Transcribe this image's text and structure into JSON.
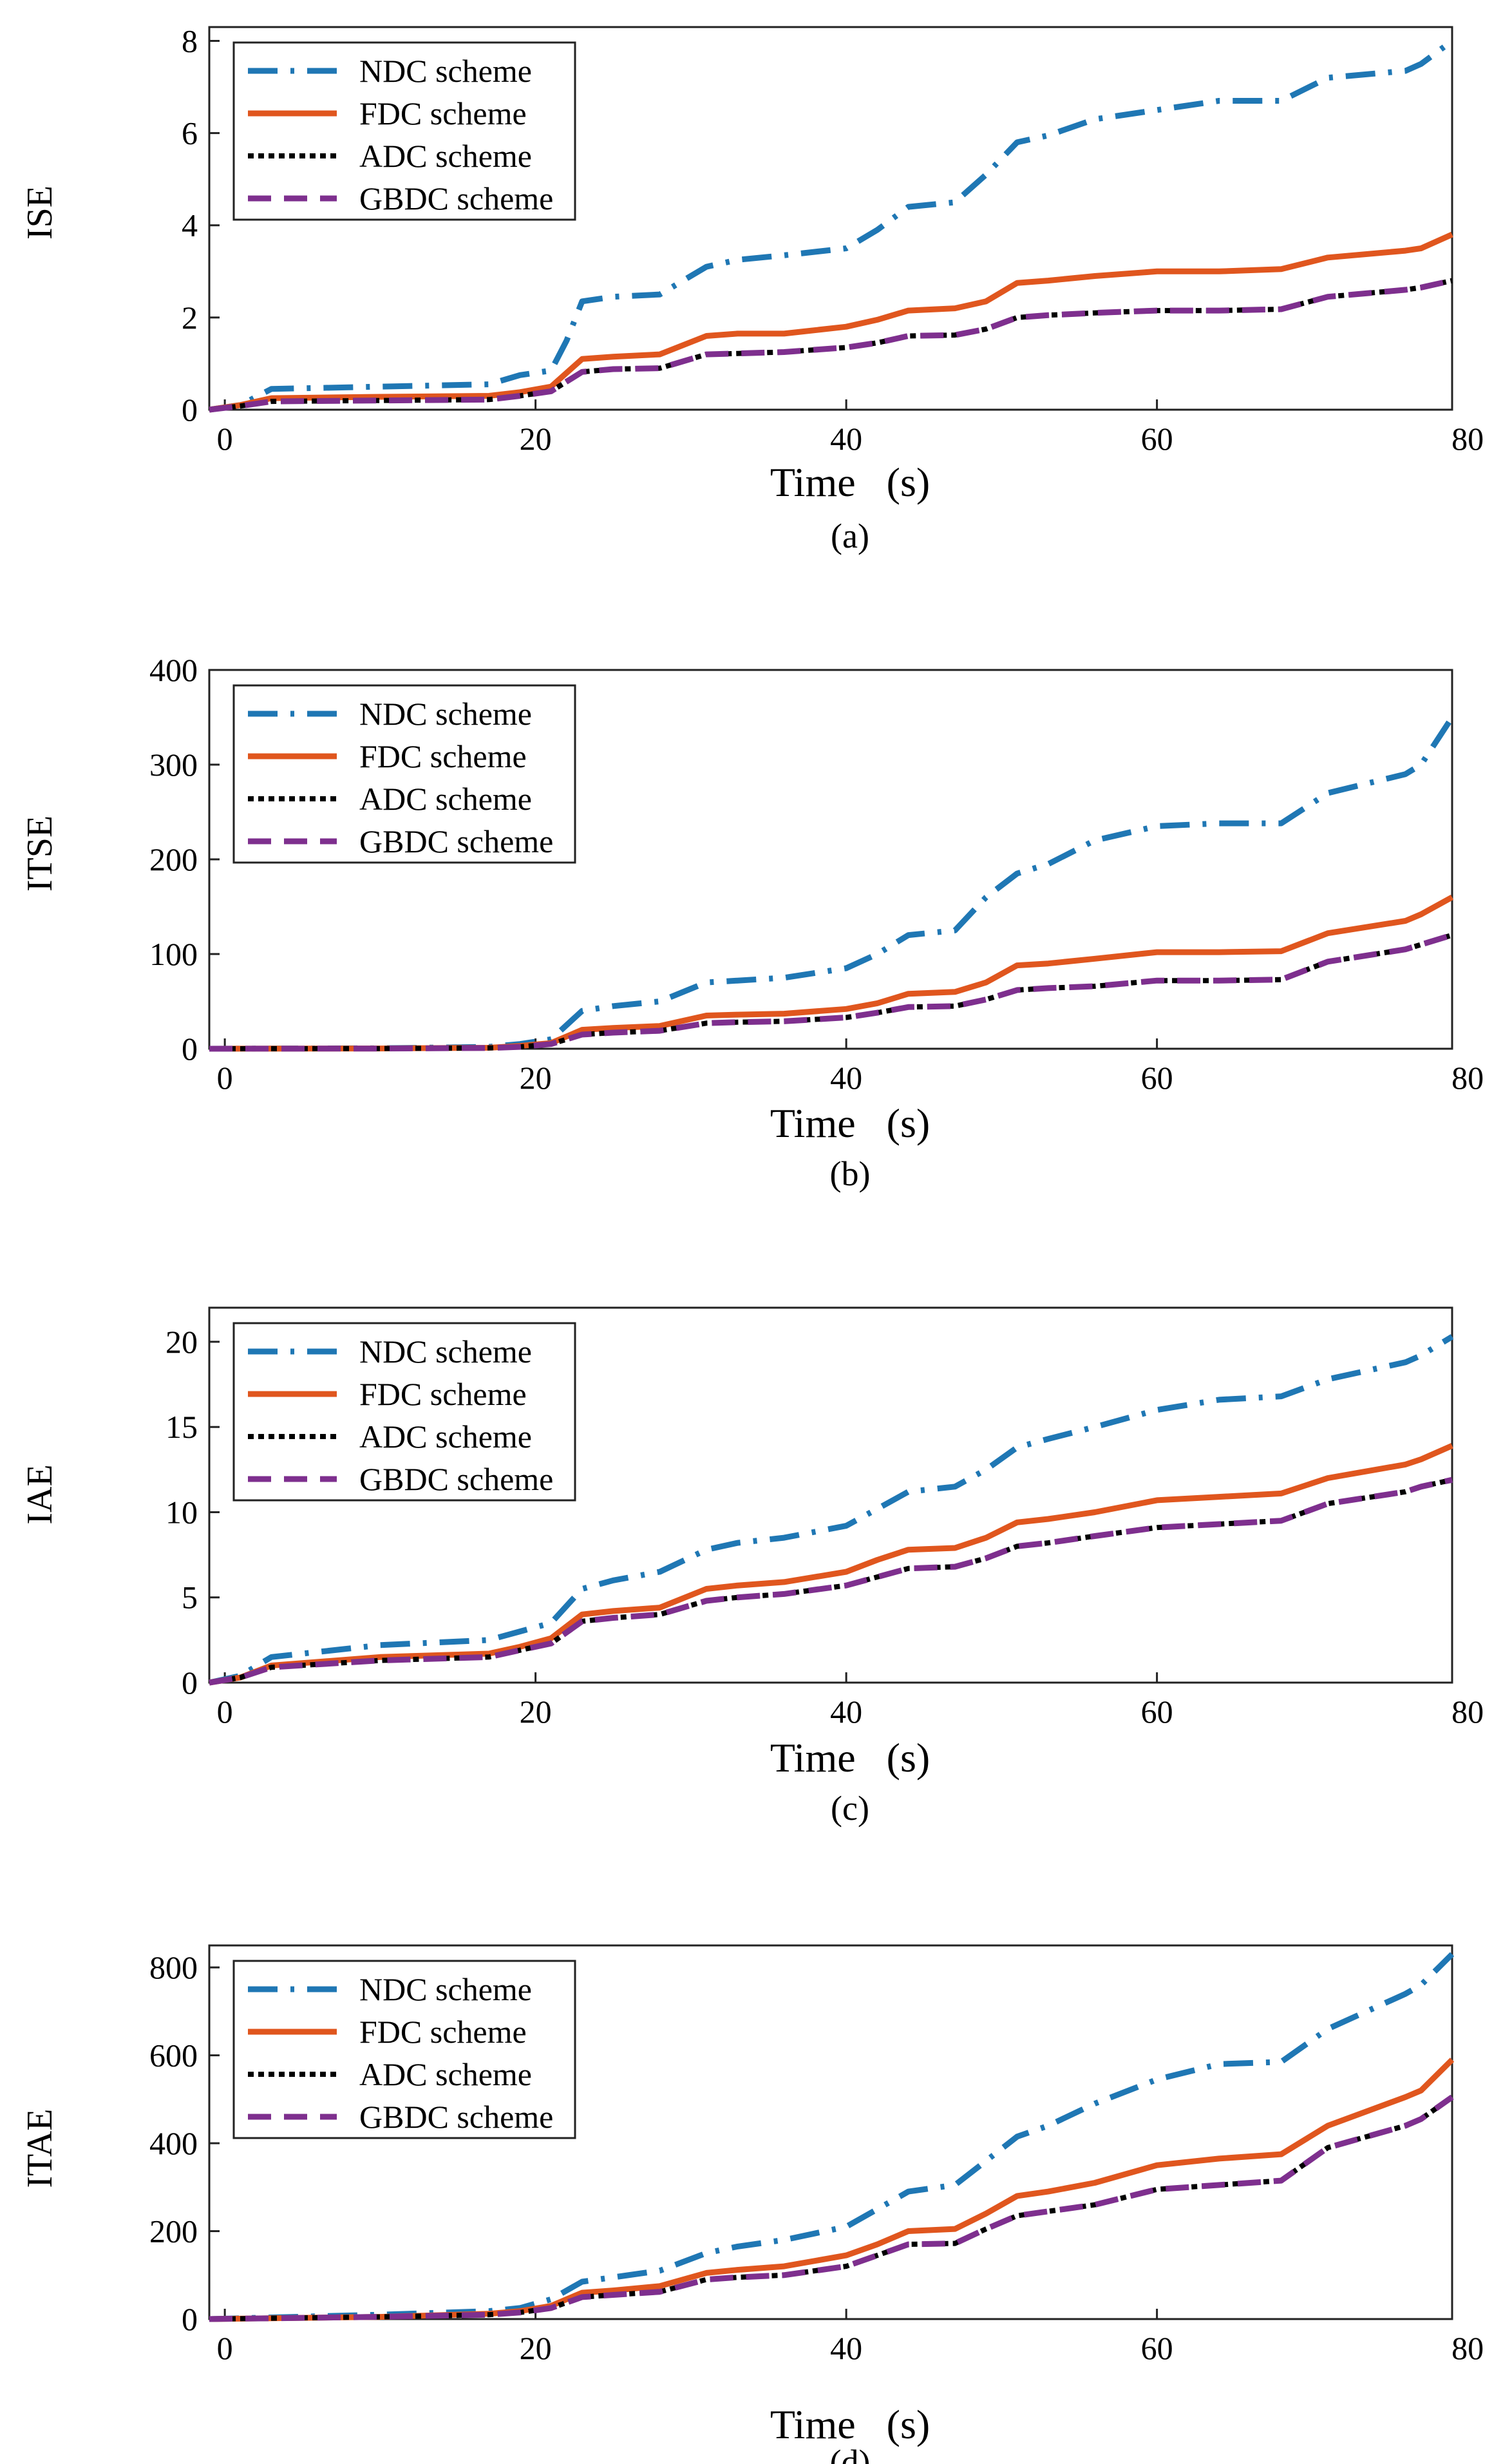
{
  "colors": {
    "NDC": "#1f77b4",
    "FDC": "#e0561e",
    "ADC": "#000000",
    "GBDC": "#7e2f8e"
  },
  "chart_data": [
    {
      "type": "line",
      "ylabel": "ISE",
      "xlabel": "Time   (s)",
      "caption": "(a)",
      "xlim": [
        -1,
        79
      ],
      "ylim": [
        0,
        8.3
      ],
      "xticks": [
        0,
        20,
        40,
        60,
        80
      ],
      "yticks": [
        0,
        2,
        4,
        6,
        8
      ],
      "xtick_labels": [
        "0",
        "20",
        "40",
        "60",
        "80"
      ],
      "ytick_labels": [
        "0",
        "2",
        "4",
        "6",
        "8"
      ],
      "legend_position": "top-left",
      "series": [
        {
          "name": "NDC scheme",
          "key": "NDC",
          "x": [
            -1,
            1,
            3,
            10,
            17,
            19,
            21,
            22,
            23,
            25,
            28,
            31,
            33,
            36,
            40,
            42,
            44,
            47,
            49,
            51,
            53,
            56,
            60,
            64,
            68,
            71,
            76,
            77,
            79
          ],
          "y": [
            0,
            0.1,
            0.45,
            0.5,
            0.55,
            0.75,
            0.85,
            1.5,
            2.35,
            2.45,
            2.5,
            3.1,
            3.25,
            3.35,
            3.5,
            3.9,
            4.4,
            4.5,
            5.1,
            5.8,
            5.95,
            6.3,
            6.5,
            6.7,
            6.7,
            7.2,
            7.35,
            7.5,
            8.0
          ]
        },
        {
          "name": "FDC scheme",
          "key": "FDC",
          "x": [
            -1,
            1,
            3,
            10,
            17,
            19,
            21,
            23,
            25,
            28,
            31,
            33,
            36,
            40,
            42,
            44,
            47,
            49,
            51,
            53,
            56,
            60,
            64,
            68,
            71,
            76,
            77,
            79
          ],
          "y": [
            0,
            0.1,
            0.25,
            0.28,
            0.3,
            0.38,
            0.5,
            1.1,
            1.15,
            1.2,
            1.6,
            1.65,
            1.65,
            1.8,
            1.95,
            2.15,
            2.2,
            2.35,
            2.75,
            2.8,
            2.9,
            3.0,
            3.0,
            3.05,
            3.3,
            3.45,
            3.5,
            3.8
          ]
        },
        {
          "name": "ADC scheme",
          "key": "ADC",
          "x": [
            -1,
            1,
            3,
            10,
            17,
            19,
            21,
            23,
            25,
            28,
            31,
            33,
            36,
            40,
            42,
            44,
            47,
            49,
            51,
            53,
            56,
            60,
            64,
            68,
            71,
            76,
            77,
            79
          ],
          "y": [
            0,
            0.08,
            0.18,
            0.2,
            0.22,
            0.3,
            0.4,
            0.82,
            0.88,
            0.9,
            1.2,
            1.22,
            1.25,
            1.35,
            1.45,
            1.6,
            1.62,
            1.75,
            2.0,
            2.05,
            2.1,
            2.15,
            2.15,
            2.18,
            2.45,
            2.6,
            2.65,
            2.8
          ]
        },
        {
          "name": "GBDC scheme",
          "key": "GBDC",
          "x": [
            -1,
            1,
            3,
            10,
            17,
            19,
            21,
            23,
            25,
            28,
            31,
            33,
            36,
            40,
            42,
            44,
            47,
            49,
            51,
            53,
            56,
            60,
            64,
            68,
            71,
            76,
            77,
            79
          ],
          "y": [
            0,
            0.08,
            0.18,
            0.2,
            0.22,
            0.3,
            0.4,
            0.82,
            0.88,
            0.9,
            1.2,
            1.22,
            1.25,
            1.35,
            1.45,
            1.6,
            1.62,
            1.75,
            2.0,
            2.05,
            2.1,
            2.15,
            2.15,
            2.18,
            2.45,
            2.6,
            2.65,
            2.8
          ]
        }
      ]
    },
    {
      "type": "line",
      "ylabel": "ITSE",
      "xlabel": "Time   (s)",
      "caption": "(b)",
      "xlim": [
        -1,
        79
      ],
      "ylim": [
        0,
        400
      ],
      "xticks": [
        0,
        20,
        40,
        60,
        80
      ],
      "yticks": [
        0,
        100,
        200,
        300,
        400
      ],
      "xtick_labels": [
        "0",
        "20",
        "40",
        "60",
        "80"
      ],
      "ytick_labels": [
        "0",
        "100",
        "200",
        "300",
        "400"
      ],
      "legend_position": "top-left",
      "series": [
        {
          "name": "NDC scheme",
          "key": "NDC",
          "x": [
            -1,
            10,
            17,
            19,
            21,
            23,
            25,
            28,
            31,
            33,
            36,
            40,
            42,
            44,
            47,
            49,
            51,
            53,
            56,
            60,
            64,
            68,
            71,
            76,
            77,
            79
          ],
          "y": [
            0,
            0.5,
            2,
            5,
            10,
            40,
            45,
            50,
            70,
            72,
            75,
            85,
            100,
            120,
            125,
            160,
            185,
            195,
            220,
            235,
            238,
            238,
            270,
            290,
            300,
            350
          ]
        },
        {
          "name": "FDC scheme",
          "key": "FDC",
          "x": [
            -1,
            10,
            17,
            19,
            21,
            23,
            25,
            28,
            31,
            33,
            36,
            40,
            42,
            44,
            47,
            49,
            51,
            53,
            56,
            60,
            64,
            68,
            71,
            76,
            77,
            79
          ],
          "y": [
            0,
            0.3,
            1,
            3,
            6,
            20,
            22,
            24,
            35,
            36,
            37,
            42,
            48,
            58,
            60,
            70,
            88,
            90,
            95,
            102,
            102,
            103,
            122,
            135,
            142,
            160
          ]
        },
        {
          "name": "ADC scheme",
          "key": "ADC",
          "x": [
            -1,
            10,
            17,
            19,
            21,
            23,
            25,
            28,
            31,
            33,
            36,
            40,
            42,
            44,
            47,
            49,
            51,
            53,
            56,
            60,
            64,
            68,
            71,
            76,
            77,
            79
          ],
          "y": [
            0,
            0.2,
            0.8,
            2,
            5,
            15,
            17,
            19,
            27,
            28,
            29,
            33,
            38,
            44,
            45,
            52,
            62,
            64,
            66,
            72,
            72,
            73,
            92,
            105,
            110,
            120
          ]
        },
        {
          "name": "GBDC scheme",
          "key": "GBDC",
          "x": [
            -1,
            10,
            17,
            19,
            21,
            23,
            25,
            28,
            31,
            33,
            36,
            40,
            42,
            44,
            47,
            49,
            51,
            53,
            56,
            60,
            64,
            68,
            71,
            76,
            77,
            79
          ],
          "y": [
            0,
            0.2,
            0.8,
            2,
            5,
            15,
            17,
            19,
            27,
            28,
            29,
            33,
            38,
            44,
            45,
            52,
            62,
            64,
            66,
            72,
            72,
            73,
            92,
            105,
            110,
            120
          ]
        }
      ]
    },
    {
      "type": "line",
      "ylabel": "IAE",
      "xlabel": "Time   (s)",
      "caption": "(c)",
      "xlim": [
        -1,
        79
      ],
      "ylim": [
        0,
        22
      ],
      "xticks": [
        0,
        20,
        40,
        60,
        80
      ],
      "yticks": [
        0,
        5,
        10,
        15,
        20
      ],
      "xtick_labels": [
        "0",
        "20",
        "40",
        "60",
        "80"
      ],
      "ytick_labels": [
        "0",
        "5",
        "10",
        "15",
        "20"
      ],
      "legend_position": "top-left",
      "series": [
        {
          "name": "NDC scheme",
          "key": "NDC",
          "x": [
            -1,
            1,
            3,
            10,
            17,
            19,
            21,
            23,
            25,
            28,
            31,
            33,
            36,
            40,
            42,
            44,
            47,
            49,
            51,
            53,
            56,
            60,
            64,
            68,
            71,
            76,
            77,
            79
          ],
          "y": [
            0,
            0.4,
            1.5,
            2.2,
            2.5,
            3.0,
            3.5,
            5.5,
            6.0,
            6.5,
            7.8,
            8.2,
            8.5,
            9.2,
            10.2,
            11.2,
            11.5,
            12.5,
            13.8,
            14.3,
            15.0,
            16.0,
            16.6,
            16.8,
            17.8,
            18.8,
            19.2,
            20.3
          ]
        },
        {
          "name": "FDC scheme",
          "key": "FDC",
          "x": [
            -1,
            1,
            3,
            10,
            17,
            19,
            21,
            23,
            25,
            28,
            31,
            33,
            36,
            40,
            42,
            44,
            47,
            49,
            51,
            53,
            56,
            60,
            64,
            68,
            71,
            76,
            77,
            79
          ],
          "y": [
            0,
            0.3,
            1.0,
            1.5,
            1.7,
            2.1,
            2.6,
            4.0,
            4.2,
            4.4,
            5.5,
            5.7,
            5.9,
            6.5,
            7.2,
            7.8,
            7.9,
            8.5,
            9.4,
            9.6,
            10.0,
            10.7,
            10.9,
            11.1,
            12.0,
            12.8,
            13.1,
            13.9
          ]
        },
        {
          "name": "ADC scheme",
          "key": "ADC",
          "x": [
            -1,
            1,
            3,
            10,
            17,
            19,
            21,
            23,
            25,
            28,
            31,
            33,
            36,
            40,
            42,
            44,
            47,
            49,
            51,
            53,
            56,
            60,
            64,
            68,
            71,
            76,
            77,
            79
          ],
          "y": [
            0,
            0.3,
            0.9,
            1.3,
            1.5,
            1.9,
            2.3,
            3.6,
            3.8,
            4.0,
            4.8,
            5.0,
            5.2,
            5.7,
            6.2,
            6.7,
            6.8,
            7.3,
            8.0,
            8.2,
            8.6,
            9.1,
            9.3,
            9.5,
            10.5,
            11.2,
            11.5,
            11.9
          ]
        },
        {
          "name": "GBDC scheme",
          "key": "GBDC",
          "x": [
            -1,
            1,
            3,
            10,
            17,
            19,
            21,
            23,
            25,
            28,
            31,
            33,
            36,
            40,
            42,
            44,
            47,
            49,
            51,
            53,
            56,
            60,
            64,
            68,
            71,
            76,
            77,
            79
          ],
          "y": [
            0,
            0.3,
            0.9,
            1.3,
            1.5,
            1.9,
            2.3,
            3.6,
            3.8,
            4.0,
            4.8,
            5.0,
            5.2,
            5.7,
            6.2,
            6.7,
            6.8,
            7.3,
            8.0,
            8.2,
            8.6,
            9.1,
            9.3,
            9.5,
            10.5,
            11.2,
            11.5,
            11.9
          ]
        }
      ]
    },
    {
      "type": "line",
      "ylabel": "ITAE",
      "xlabel": "Time   (s)",
      "caption": "(d)",
      "xlim": [
        -1,
        79
      ],
      "ylim": [
        0,
        850
      ],
      "xticks": [
        0,
        20,
        40,
        60,
        80
      ],
      "yticks": [
        0,
        200,
        400,
        600,
        800
      ],
      "xtick_labels": [
        "0",
        "20",
        "40",
        "60",
        "80"
      ],
      "ytick_labels": [
        "0",
        "200",
        "400",
        "600",
        "800"
      ],
      "legend_position": "top-left",
      "series": [
        {
          "name": "NDC scheme",
          "key": "NDC",
          "x": [
            -1,
            10,
            17,
            19,
            21,
            23,
            25,
            28,
            31,
            33,
            36,
            40,
            42,
            44,
            47,
            49,
            51,
            53,
            56,
            60,
            64,
            68,
            71,
            76,
            77,
            79
          ],
          "y": [
            0,
            10,
            18,
            25,
            45,
            85,
            95,
            110,
            150,
            165,
            180,
            210,
            250,
            290,
            305,
            360,
            415,
            440,
            490,
            545,
            580,
            585,
            660,
            740,
            760,
            830
          ]
        },
        {
          "name": "FDC scheme",
          "key": "FDC",
          "x": [
            -1,
            10,
            17,
            19,
            21,
            23,
            25,
            28,
            31,
            33,
            36,
            40,
            42,
            44,
            47,
            49,
            51,
            53,
            56,
            60,
            64,
            68,
            71,
            76,
            77,
            79
          ],
          "y": [
            0,
            5,
            12,
            18,
            30,
            60,
            65,
            75,
            105,
            112,
            120,
            145,
            170,
            200,
            205,
            240,
            280,
            290,
            310,
            350,
            365,
            375,
            440,
            505,
            520,
            590
          ]
        },
        {
          "name": "ADC scheme",
          "key": "ADC",
          "x": [
            -1,
            10,
            17,
            19,
            21,
            23,
            25,
            28,
            31,
            33,
            36,
            40,
            42,
            44,
            47,
            49,
            51,
            53,
            56,
            60,
            64,
            68,
            71,
            76,
            77,
            79
          ],
          "y": [
            0,
            5,
            10,
            15,
            25,
            50,
            55,
            62,
            90,
            95,
            100,
            120,
            145,
            170,
            172,
            205,
            235,
            245,
            260,
            295,
            305,
            315,
            390,
            440,
            455,
            505
          ]
        },
        {
          "name": "GBDC scheme",
          "key": "GBDC",
          "x": [
            -1,
            10,
            17,
            19,
            21,
            23,
            25,
            28,
            31,
            33,
            36,
            40,
            42,
            44,
            47,
            49,
            51,
            53,
            56,
            60,
            64,
            68,
            71,
            76,
            77,
            79
          ],
          "y": [
            0,
            5,
            10,
            15,
            25,
            50,
            55,
            62,
            90,
            95,
            100,
            120,
            145,
            170,
            172,
            205,
            235,
            245,
            260,
            295,
            305,
            315,
            390,
            440,
            455,
            505
          ]
        }
      ]
    }
  ]
}
